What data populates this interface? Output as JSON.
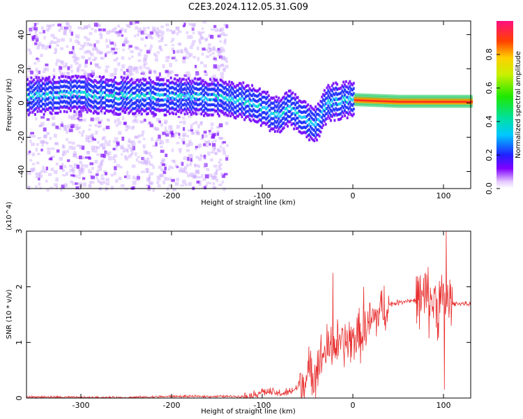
{
  "title": "C2E3.2024.112.05.31.G09",
  "chart_data": [
    {
      "type": "heatmap",
      "title": "C2E3.2024.112.05.31.G09",
      "xlabel": "Height of straight line (km)",
      "ylabel": "Frequency (Hz)",
      "xlim": [
        -360,
        130
      ],
      "ylim": [
        -50,
        48
      ],
      "x_ticks": [
        -300,
        -200,
        -100,
        0,
        100
      ],
      "y_ticks": [
        -40,
        -20,
        0,
        20,
        40
      ],
      "colorbar": {
        "label": "Normalized spectral amplitude",
        "range": [
          0.0,
          1.0
        ],
        "ticks": [
          0.0,
          0.2,
          0.4,
          0.6,
          0.8
        ],
        "tick_labels": [
          "0.0",
          "0.2",
          "0.4",
          "0.6",
          "0.8"
        ],
        "colormap": "hsv-rainbow (violet to red)"
      },
      "ridge": {
        "description": "dominant frequency band",
        "points": [
          {
            "x": -360,
            "y": 4
          },
          {
            "x": -300,
            "y": 5
          },
          {
            "x": -250,
            "y": 4
          },
          {
            "x": -200,
            "y": 4
          },
          {
            "x": -150,
            "y": 3
          },
          {
            "x": -120,
            "y": 1
          },
          {
            "x": -100,
            "y": -3
          },
          {
            "x": -90,
            "y": -6
          },
          {
            "x": -80,
            "y": -7
          },
          {
            "x": -70,
            "y": -2
          },
          {
            "x": -55,
            "y": -10
          },
          {
            "x": -40,
            "y": -12
          },
          {
            "x": -30,
            "y": -1
          },
          {
            "x": -20,
            "y": 1
          },
          {
            "x": 0,
            "y": 2
          },
          {
            "x": 50,
            "y": 1
          },
          {
            "x": 100,
            "y": 1
          },
          {
            "x": 130,
            "y": 1
          }
        ]
      }
    },
    {
      "type": "line",
      "xlabel": "Height of straight line (km)",
      "ylabel": "SNR (10 * v/v)",
      "y_multiplier": "(x10^4)",
      "xlim": [
        -360,
        130
      ],
      "ylim": [
        0,
        3
      ],
      "x_ticks": [
        -300,
        -200,
        -100,
        0,
        100
      ],
      "y_ticks": [
        0,
        1,
        2,
        3
      ],
      "color": "#e83030",
      "x": [
        -360,
        -340,
        -300,
        -250,
        -200,
        -150,
        -120,
        -110,
        -100,
        -90,
        -80,
        -70,
        -60,
        -50,
        -40,
        -30,
        -20,
        -10,
        0,
        10,
        20,
        30,
        40,
        50,
        60,
        70,
        80,
        90,
        100,
        110,
        120,
        130
      ],
      "y": [
        0.02,
        0.02,
        0.01,
        0.01,
        0.03,
        0.03,
        0.03,
        0.05,
        0.12,
        0.1,
        0.08,
        0.1,
        0.2,
        0.38,
        0.55,
        0.85,
        0.95,
        0.98,
        1.05,
        1.15,
        1.35,
        1.55,
        1.68,
        1.72,
        1.75,
        1.75,
        1.76,
        1.75,
        1.7,
        1.7,
        1.7,
        1.68
      ],
      "spikes": [
        {
          "x": -22,
          "y": 2.25
        },
        {
          "x": 12,
          "y": 2.0
        },
        {
          "x": 80,
          "y": 2.25
        },
        {
          "x": 103,
          "y": 3.0
        },
        {
          "x": 101,
          "y": 0.15
        }
      ]
    }
  ]
}
